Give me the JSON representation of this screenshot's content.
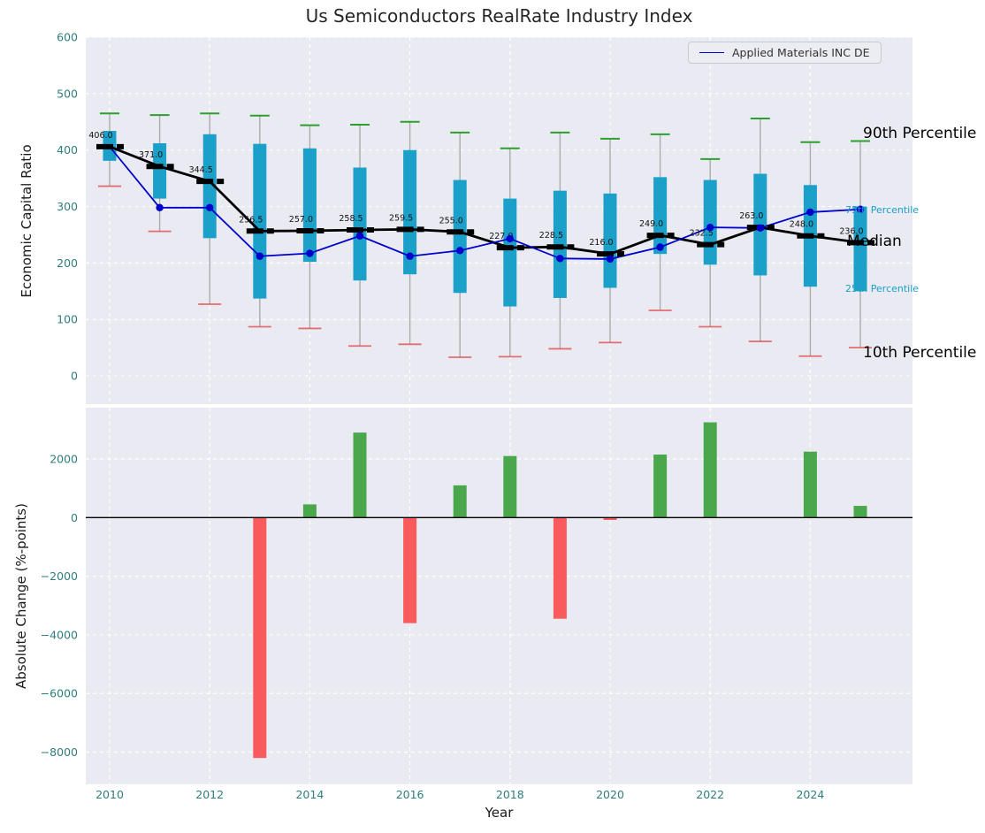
{
  "annotations": {
    "p90": {
      "text": "90th Percentile",
      "color": "#000000"
    },
    "p75": {
      "text": "75th Percentile",
      "color": "#1ba0c9"
    },
    "median": {
      "text": "Median",
      "color": "#000000"
    },
    "p25": {
      "text": "25th Percentile",
      "color": "#1ba0c9"
    },
    "p10": {
      "text": "10th Percentile",
      "color": "#000000"
    }
  },
  "colors": {
    "plot_bg": "#eaeaf2",
    "box_fill": "#1ba0c9",
    "p90_cap": "#2ca02c",
    "p10_cap": "#e05050",
    "median_line": "#000000",
    "company_line": "#0000cc",
    "bar_positive": "#3aa03a",
    "bar_negative": "#fb4b4b",
    "tick_color": "#2e7e7e"
  },
  "chart_data": [
    {
      "type": "boxplot",
      "title": "Us Semiconductors RealRate Industry Index",
      "ylabel": "Economic Capital Ratio",
      "legend": "Applied Materials INC DE",
      "x": [
        2010,
        2011,
        2012,
        2013,
        2014,
        2015,
        2016,
        2017,
        2018,
        2019,
        2020,
        2021,
        2022,
        2023,
        2024,
        2025
      ],
      "xticks": [
        2010,
        2012,
        2014,
        2016,
        2018,
        2020,
        2022,
        2024
      ],
      "yticks": [
        0,
        100,
        200,
        300,
        400,
        500,
        600
      ],
      "ylim": [
        -50,
        600
      ],
      "series": [
        {
          "key": "p90",
          "name": "90th Percentile",
          "values": [
            465,
            462,
            465,
            461,
            444,
            445,
            450,
            431,
            403,
            431,
            420,
            428,
            384,
            456,
            414,
            416
          ]
        },
        {
          "key": "p75",
          "name": "75th Percentile",
          "values": [
            434,
            412,
            428,
            411,
            403,
            369,
            400,
            347,
            314,
            328,
            323,
            352,
            347,
            358,
            338,
            300
          ]
        },
        {
          "key": "median",
          "name": "Median",
          "values": [
            406,
            371,
            344.5,
            256.5,
            257,
            258.5,
            259.5,
            255,
            227,
            228.5,
            216,
            249,
            232.5,
            263,
            248,
            236
          ]
        },
        {
          "key": "p25",
          "name": "25th Percentile",
          "values": [
            381,
            314,
            244,
            137,
            202,
            169,
            180,
            147,
            123,
            138,
            156,
            216,
            197,
            178,
            158,
            150
          ]
        },
        {
          "key": "p10",
          "name": "10th Percentile",
          "values": [
            336,
            256,
            127,
            87,
            84,
            53,
            56,
            33,
            34,
            48,
            59,
            116,
            87,
            61,
            35,
            50
          ]
        },
        {
          "key": "company",
          "name": "Applied Materials INC DE",
          "values": [
            406,
            298,
            298,
            212,
            217,
            248,
            212,
            222,
            243,
            208,
            207,
            228,
            263,
            262,
            290,
            295
          ]
        }
      ]
    },
    {
      "type": "bar",
      "ylabel": "Absolute Change (%-points)",
      "xlabel": "Year",
      "x": [
        2010,
        2011,
        2012,
        2013,
        2014,
        2015,
        2016,
        2017,
        2018,
        2019,
        2020,
        2021,
        2022,
        2023,
        2024,
        2025
      ],
      "values": [
        null,
        null,
        null,
        -8200,
        450,
        2900,
        -3600,
        1100,
        2100,
        -3450,
        -80,
        2150,
        3250,
        null,
        2250,
        400
      ],
      "yticks": [
        2000,
        0,
        -2000,
        -4000,
        -6000,
        -8000
      ],
      "ylim": [
        -9100,
        3750
      ]
    }
  ]
}
